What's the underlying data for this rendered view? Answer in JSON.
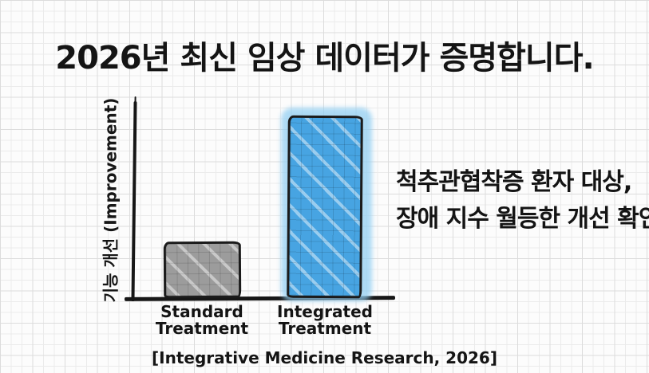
{
  "title": "2026년 최신 임상 데이터가 증명합니다.",
  "annotation": {
    "line1": "척추관협착증 환자 대상,",
    "line2": "장애 지수 월등한 개선 확인."
  },
  "citation": "[Integrative Medicine Research, 2026]",
  "chart_data": {
    "type": "bar",
    "categories": [
      "Standard Treatment",
      "Integrated Treatment"
    ],
    "values": [
      29,
      93
    ],
    "title": "2026년 최신 임상 데이터가 증명합니다.",
    "xlabel": "",
    "ylabel": "기능 개선 (Improvement)",
    "ylim": [
      0,
      100
    ],
    "value_note": "axis is unlabeled; values estimated as % of plot height",
    "bar_colors": [
      "#9c9c9c",
      "#47a4e2"
    ],
    "legend_position": "none",
    "grid": "graph-paper background only",
    "style": "hand-drawn sketch, black outlines, marker-style fill, light-blue halo behind second bar"
  },
  "colors": {
    "background": "#fcfcfc",
    "grid_line": "#dcdcdc",
    "ink": "#161616",
    "bar_standard": "#9c9c9c",
    "bar_integrated": "#47a4e2",
    "bar_integrated_halo": "#93cff2"
  }
}
